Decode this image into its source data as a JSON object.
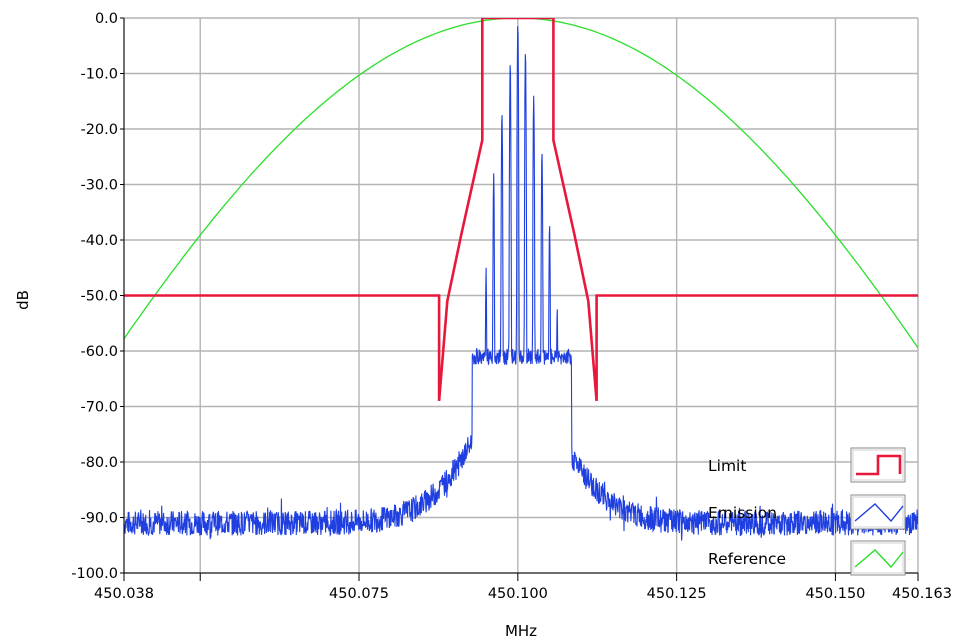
{
  "chart_data": {
    "type": "line",
    "title": "",
    "xlabel": "MHz",
    "ylabel": "dB",
    "xlim": [
      450.038,
      450.163
    ],
    "ylim": [
      -100,
      0
    ],
    "x_ticks": [
      {
        "value": 450.038,
        "label": "450.038"
      },
      {
        "value": 450.05,
        "label": ""
      },
      {
        "value": 450.075,
        "label": "450.075"
      },
      {
        "value": 450.1,
        "label": "450.100"
      },
      {
        "value": 450.125,
        "label": "450.125"
      },
      {
        "value": 450.15,
        "label": "450.150"
      },
      {
        "value": 450.163,
        "label": "450.163"
      }
    ],
    "y_ticks": [
      {
        "value": 0,
        "label": "0.0"
      },
      {
        "value": -10,
        "label": "-10.0"
      },
      {
        "value": -20,
        "label": "-20.0"
      },
      {
        "value": -30,
        "label": "-30.0"
      },
      {
        "value": -40,
        "label": "-40.0"
      },
      {
        "value": -50,
        "label": "-50.0"
      },
      {
        "value": -60,
        "label": "-60.0"
      },
      {
        "value": -70,
        "label": "-70.0"
      },
      {
        "value": -80,
        "label": "-80.0"
      },
      {
        "value": -90,
        "label": "-90.0"
      },
      {
        "value": -100,
        "label": "-100.0"
      }
    ],
    "grid": true,
    "legend_position": "bottom-right",
    "series": [
      {
        "name": "Limit",
        "color": "#e8173c",
        "style": "step",
        "x": [
          450.038,
          450.0876,
          450.0876,
          450.0889,
          450.0911,
          450.0944,
          450.0944,
          450.1056,
          450.1056,
          450.1089,
          450.1111,
          450.1124,
          450.1124,
          450.163
        ],
        "y": [
          -50,
          -50,
          -69,
          -51,
          -39,
          -22,
          0,
          0,
          -22,
          -39,
          -51,
          -69,
          -50,
          -50
        ]
      },
      {
        "name": "Emission",
        "color": "#1f3fe0",
        "style": "line",
        "noise_floor": -91,
        "peaks": [
          {
            "x": 450.0938,
            "y": -65
          },
          {
            "x": 450.095,
            "y": -45
          },
          {
            "x": 450.0962,
            "y": -28
          },
          {
            "x": 450.0975,
            "y": -17
          },
          {
            "x": 450.0988,
            "y": -8
          },
          {
            "x": 450.1,
            "y": -1
          },
          {
            "x": 450.1012,
            "y": -6
          },
          {
            "x": 450.1025,
            "y": -14
          },
          {
            "x": 450.1038,
            "y": -24
          },
          {
            "x": 450.105,
            "y": -37
          },
          {
            "x": 450.1062,
            "y": -52
          },
          {
            "x": 450.1075,
            "y": -68
          }
        ],
        "troughs": [
          {
            "x": 450.0944,
            "y": -62
          },
          {
            "x": 450.0956,
            "y": -60
          },
          {
            "x": 450.0969,
            "y": -60
          },
          {
            "x": 450.0981,
            "y": -61
          },
          {
            "x": 450.0994,
            "y": -60
          },
          {
            "x": 450.1006,
            "y": -61
          },
          {
            "x": 450.1019,
            "y": -61
          },
          {
            "x": 450.1031,
            "y": -60
          },
          {
            "x": 450.1044,
            "y": -61
          },
          {
            "x": 450.1056,
            "y": -63
          },
          {
            "x": 450.1069,
            "y": -67
          }
        ]
      },
      {
        "name": "Reference",
        "color": "#2adf2a",
        "style": "line",
        "x": [
          450.038,
          450.05,
          450.0625,
          450.075,
          450.0875,
          450.1,
          450.1125,
          450.125,
          450.1375,
          450.15,
          450.163
        ],
        "y": [
          -58.6,
          -37.8,
          -21.3,
          -9.5,
          -2.4,
          0,
          -2.4,
          -9.5,
          -21.3,
          -37.8,
          -58.6
        ]
      }
    ],
    "legend": {
      "items": [
        {
          "label": "Limit",
          "series": "Limit",
          "icon": "step-line-icon"
        },
        {
          "label": "Emission",
          "series": "Emission",
          "icon": "zigzag-line-icon"
        },
        {
          "label": "Reference",
          "series": "Reference",
          "icon": "zigzag-line-icon"
        }
      ]
    }
  }
}
